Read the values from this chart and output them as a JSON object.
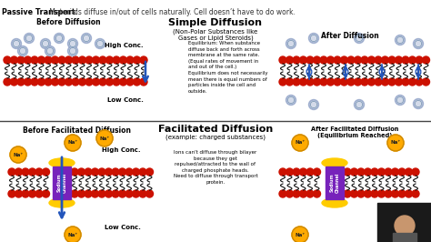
{
  "bg_color": "#ffffff",
  "title_bold": "Passive Transport:",
  "title_rest": " Materials diffuse in/out of cells naturally. Cell doesn’t have to do work.",
  "simple_diffusion_title": "Simple Diffusion",
  "simple_diffusion_sub": "(Non-Polar Substances like\nGases or Lipid Steroids)",
  "facilitated_title": "Facilitated Diffusion",
  "facilitated_sub": "(example: charged substances)",
  "before_diffusion": "Before Diffusion",
  "after_diffusion": "After Diffusion",
  "before_facilitated": "Before Facilitated Diffusion",
  "after_facilitated": "After Facilitated Diffusion\n(Equilibrium Reached)",
  "high_conc": "High Conc.",
  "low_conc": "Low Conc.",
  "equilibrium_text": "Equilibrium: When substance\ndiffuse back and forth across\nmembrane at the same rate.\n(Equal rates of movement in\nand out of the cell.)\nEquilibrium does not necessarily\nmean there is equal numbers of\nparticles inside the cell and\noutside.",
  "ions_text": "Ions can't diffuse through bilayer\nbecause they get\nrepulsed/attracted to the wall of\ncharged phosphate heads.\nNeed to diffuse through transport\nprotein.",
  "membrane_head_color": "#cc1100",
  "membrane_tail_color": "#111111",
  "channel_color": "#7722bb",
  "channel_border_color": "#ffcc00",
  "channel_label": "Sodium\nChannel",
  "na_color": "#ffaa00",
  "na_text": "Na⁺",
  "particle_color": "#99aacc",
  "particle_ring_color": "#6688aa",
  "arrow_color": "#2255bb",
  "divider_color": "#444444",
  "text_color": "#111111",
  "webcam_bg": "#1a1a1a",
  "skin_color": "#c8966e"
}
